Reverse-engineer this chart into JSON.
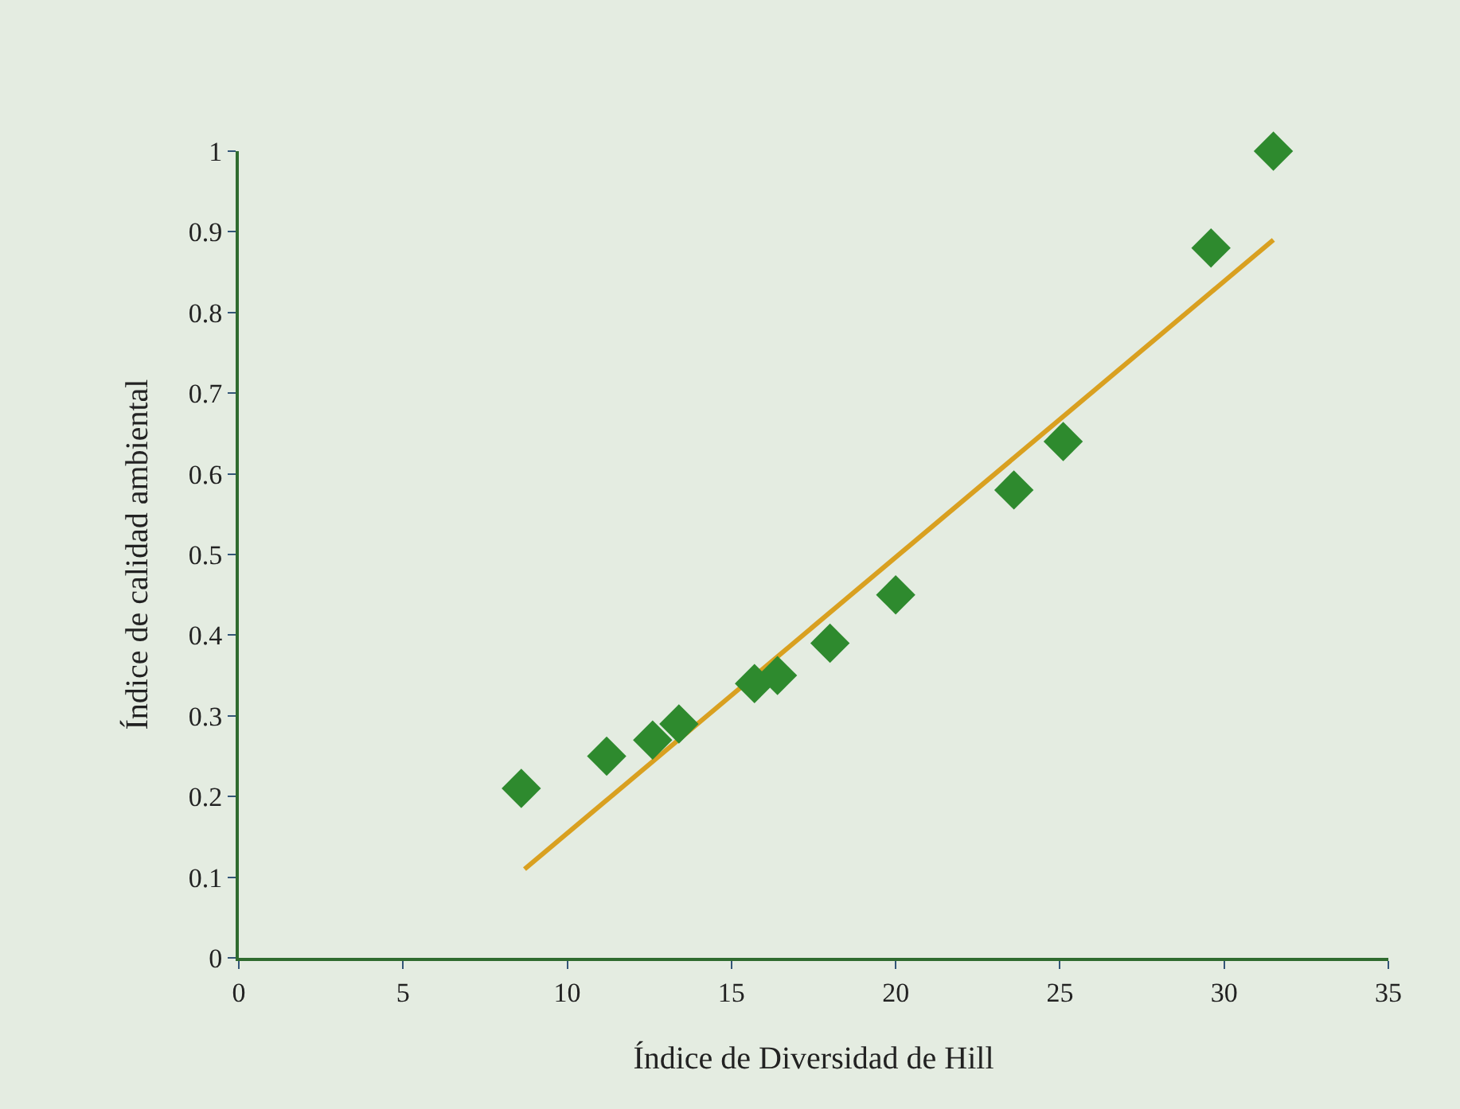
{
  "chart_data": {
    "type": "scatter",
    "xlabel": "Índice de Diversidad de Hill",
    "ylabel": "Índice de calidad ambiental",
    "xlim": [
      0,
      35
    ],
    "xticks": [
      0,
      5,
      10,
      15,
      20,
      25,
      30,
      35
    ],
    "ylim": [
      0,
      1
    ],
    "yticks": [
      0,
      0.1,
      0.2,
      0.3,
      0.4,
      0.5,
      0.6,
      0.7,
      0.8,
      0.9,
      1
    ],
    "grid": false,
    "series": [
      {
        "marker": "diamond",
        "color": "#2e8a2e",
        "x": [
          8.6,
          11.2,
          12.6,
          13.4,
          15.7,
          16.4,
          18.0,
          20.0,
          23.6,
          25.1,
          29.6,
          31.5
        ],
        "values": [
          0.21,
          0.25,
          0.27,
          0.29,
          0.34,
          0.35,
          0.39,
          0.45,
          0.58,
          0.64,
          0.88,
          1.0
        ]
      },
      {
        "type": "line",
        "color": "#d9a020",
        "x": [
          8.7,
          31.5
        ],
        "values": [
          0.11,
          0.89
        ]
      }
    ]
  }
}
